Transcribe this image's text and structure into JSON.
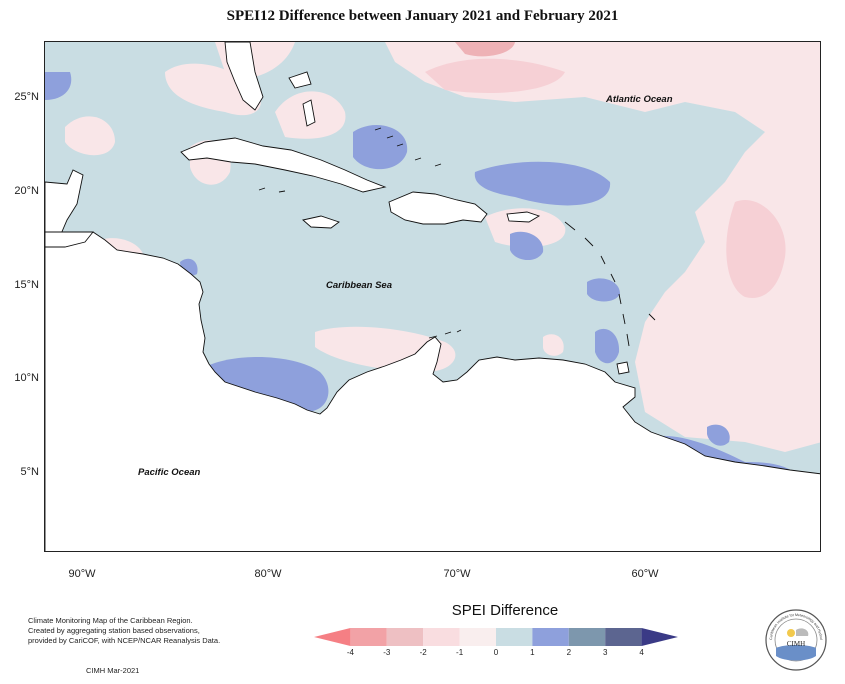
{
  "title": "SPEI12 Difference between January 2021 and February 2021",
  "map": {
    "y_labels": [
      {
        "lat": 25,
        "label": "25°N"
      },
      {
        "lat": 20,
        "label": "20°N"
      },
      {
        "lat": 15,
        "label": "15°N"
      },
      {
        "lat": 10,
        "label": "10°N"
      },
      {
        "lat": 5,
        "label": "5°N"
      }
    ],
    "x_labels": [
      {
        "lon": -90,
        "label": "90°W"
      },
      {
        "lon": -80,
        "label": "80°W"
      },
      {
        "lon": -70,
        "label": "70°W"
      },
      {
        "lon": -60,
        "label": "60°W"
      }
    ],
    "lon_range": [
      -92.3,
      -50.6
    ],
    "lat_range": [
      0.6,
      27.8
    ],
    "ocean_labels": {
      "atlantic": "Atlantic Ocean",
      "caribbean": "Caribbean Sea",
      "pacific": "Pacific Ocean"
    },
    "colors": {
      "neutral": "#c9dde3",
      "light_pink": "#f9e6e8",
      "pink": "#f6d0d5",
      "rose": "#eeb2b6",
      "blue": "#8ea0dc",
      "land": "#ffffff"
    }
  },
  "notes": {
    "line1": "Climate Monitoring Map of the Caribbean Region.",
    "line2": "Created by aggregating station based observations,",
    "line3": "provided by CariCOF, with NCEP/NCAR Reanalysis Data.",
    "date": "CIMH Mar-2021"
  },
  "legend": {
    "title": "SPEI Difference",
    "ticks": [
      "-4",
      "-3",
      "-2",
      "-1",
      "0",
      "1",
      "2",
      "3",
      "4"
    ],
    "colors": [
      "#f57f84",
      "#f2a2a6",
      "#eec0c3",
      "#f9dde0",
      "#f9eeee",
      "#c9dde3",
      "#8ea0dc",
      "#7d97ad",
      "#5c6590",
      "#3a3a86"
    ]
  },
  "logo": {
    "label": "CIMH",
    "ring_text": "Caribbean Institute for Meteorology and Hydrology"
  }
}
